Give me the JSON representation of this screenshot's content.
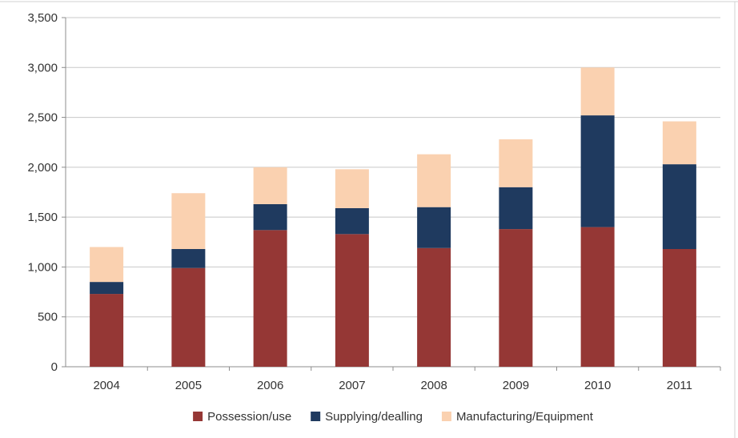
{
  "chart_data": {
    "type": "bar",
    "stacked": true,
    "categories": [
      "2004",
      "2005",
      "2006",
      "2007",
      "2008",
      "2009",
      "2010",
      "2011"
    ],
    "series": [
      {
        "name": "Possession/use",
        "color": "#953735",
        "values": [
          730,
          990,
          1370,
          1330,
          1190,
          1380,
          1400,
          1180
        ]
      },
      {
        "name": "Supplying/dealling",
        "color": "#1f3a5f",
        "values": [
          120,
          190,
          260,
          260,
          410,
          420,
          1120,
          850
        ]
      },
      {
        "name": "Manufacturing/Equipment",
        "color": "#fad1b0",
        "values": [
          350,
          560,
          370,
          390,
          530,
          480,
          480,
          430
        ]
      }
    ],
    "ylim": [
      0,
      3500
    ],
    "yticks": [
      0,
      500,
      1000,
      1500,
      2000,
      2500,
      3000,
      3500
    ],
    "ytick_labels": [
      "0",
      "500",
      "1,000",
      "1,500",
      "2,000",
      "2,500",
      "3,000",
      "3,500"
    ],
    "grid": "horizontal",
    "legend": "bottom",
    "colors": {
      "grid": "#c8c8c8",
      "axis": "#8c8c8c"
    }
  }
}
